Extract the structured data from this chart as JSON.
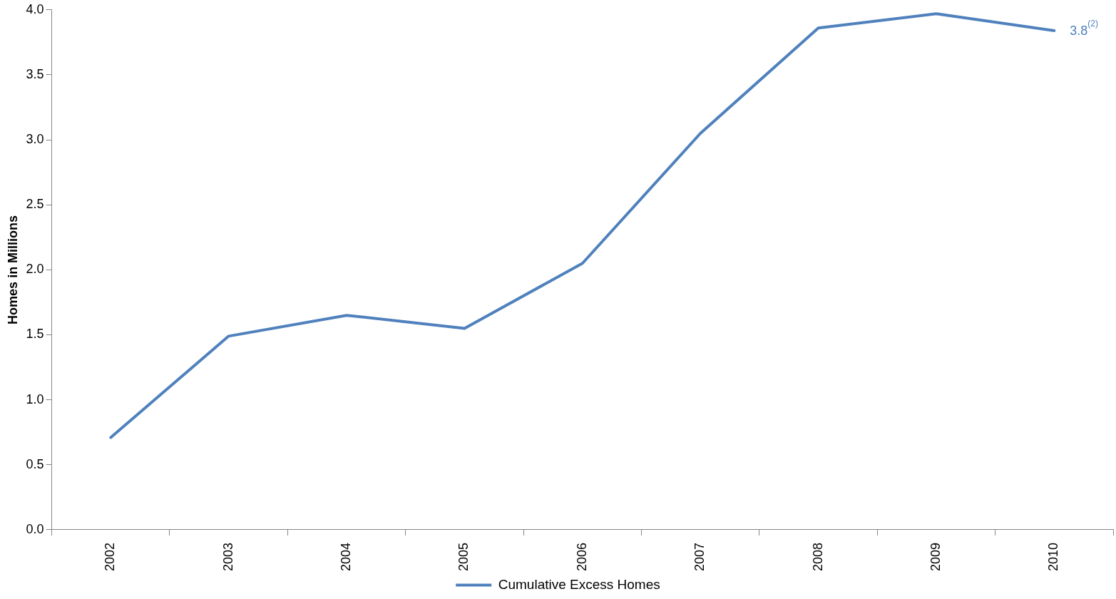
{
  "chart_data": {
    "type": "line",
    "ylabel": "Homes in Millions",
    "categories": [
      "2002",
      "2003",
      "2004",
      "2005",
      "2006",
      "2007",
      "2008",
      "2009",
      "2010"
    ],
    "series": [
      {
        "name": "Cumulative Excess Homes",
        "color": "#4f81bd",
        "values": [
          0.71,
          1.49,
          1.65,
          1.55,
          2.05,
          3.05,
          3.86,
          3.97,
          3.84
        ],
        "value_labels": [
          null,
          null,
          null,
          null,
          null,
          null,
          null,
          null,
          "3.8$^{(2)}$"
        ]
      }
    ],
    "ylim": [
      0,
      4
    ],
    "yticks": [
      {
        "value": 0,
        "label": "0.0"
      },
      {
        "value": 0.5,
        "label": "0.5"
      },
      {
        "value": 1,
        "label": "1.0"
      },
      {
        "value": 1.5,
        "label": "1.5"
      },
      {
        "value": 2,
        "label": "2.0"
      },
      {
        "value": 2.5,
        "label": "2.5"
      },
      {
        "value": 3,
        "label": "3.0"
      },
      {
        "value": 3.5,
        "label": "3.5"
      },
      {
        "value": 4,
        "label": "4.0"
      }
    ],
    "grid": false,
    "legend": "bottom",
    "marker": "none",
    "line_style": "solid"
  }
}
